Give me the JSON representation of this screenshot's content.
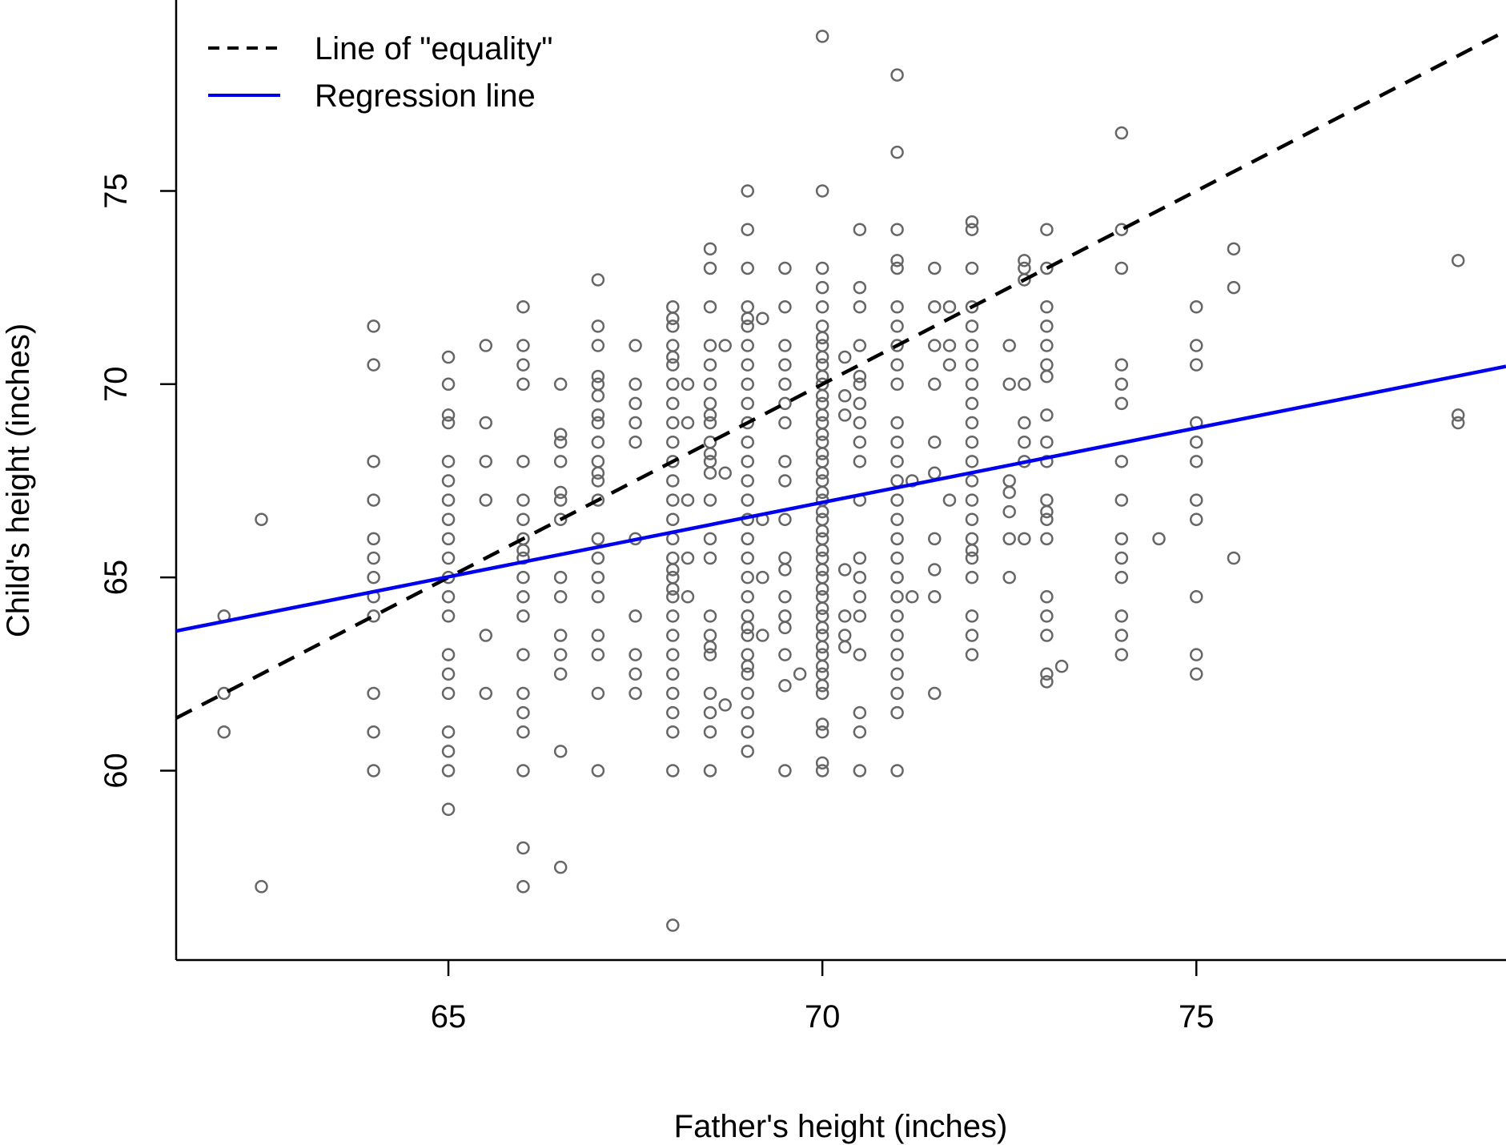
{
  "chart_data": {
    "type": "scatter",
    "xlabel": "Father's height (inches)",
    "ylabel": "Child's height (inches)",
    "xlim": [
      61.36,
      79.14
    ],
    "ylim": [
      55.1,
      79.94
    ],
    "xticks": [
      65,
      70,
      75
    ],
    "yticks": [
      60,
      65,
      70,
      75
    ],
    "grid": false,
    "legend_position": "top-left",
    "colors": {
      "points": "#666666",
      "equality": "#000000",
      "regression": "#0000ee"
    },
    "legend": [
      {
        "label": "Line of \"equality\"",
        "style": "dashed",
        "color": "#000000"
      },
      {
        "label": "Regression line",
        "style": "solid",
        "color": "#0000ee"
      }
    ],
    "lines": {
      "equality": {
        "slope": 1,
        "intercept": 0
      },
      "regression": {
        "slope": 0.385,
        "intercept": 39.99
      }
    },
    "points": [
      [
        62,
        64
      ],
      [
        62,
        62
      ],
      [
        62,
        61
      ],
      [
        62.5,
        66.5
      ],
      [
        62.5,
        57
      ],
      [
        64,
        71.5
      ],
      [
        64,
        70.5
      ],
      [
        64,
        68
      ],
      [
        64,
        67
      ],
      [
        64,
        66
      ],
      [
        64,
        65.5
      ],
      [
        64,
        65
      ],
      [
        64,
        64.5
      ],
      [
        64,
        64
      ],
      [
        64,
        62
      ],
      [
        64,
        61
      ],
      [
        64,
        60
      ],
      [
        65,
        70.7
      ],
      [
        65,
        70
      ],
      [
        65,
        69.2
      ],
      [
        65,
        69
      ],
      [
        65,
        68
      ],
      [
        65,
        67.5
      ],
      [
        65,
        67
      ],
      [
        65,
        66.5
      ],
      [
        65,
        66
      ],
      [
        65,
        65.5
      ],
      [
        65,
        65
      ],
      [
        65,
        64.5
      ],
      [
        65,
        64
      ],
      [
        65,
        63
      ],
      [
        65,
        62.5
      ],
      [
        65,
        62
      ],
      [
        65,
        61
      ],
      [
        65,
        60.5
      ],
      [
        65,
        60
      ],
      [
        65,
        59
      ],
      [
        65.5,
        71
      ],
      [
        65.5,
        69
      ],
      [
        65.5,
        68
      ],
      [
        65.5,
        67
      ],
      [
        65.5,
        63.5
      ],
      [
        65.5,
        62
      ],
      [
        66,
        72
      ],
      [
        66,
        71
      ],
      [
        66,
        70.5
      ],
      [
        66,
        70
      ],
      [
        66,
        68
      ],
      [
        66,
        67
      ],
      [
        66,
        66.5
      ],
      [
        66,
        66
      ],
      [
        66,
        65.7
      ],
      [
        66,
        65.5
      ],
      [
        66,
        65
      ],
      [
        66,
        64.5
      ],
      [
        66,
        64
      ],
      [
        66,
        63
      ],
      [
        66,
        62
      ],
      [
        66,
        61.5
      ],
      [
        66,
        61
      ],
      [
        66,
        60
      ],
      [
        66,
        58
      ],
      [
        66,
        57
      ],
      [
        66.5,
        70
      ],
      [
        66.5,
        68.7
      ],
      [
        66.5,
        68.5
      ],
      [
        66.5,
        68
      ],
      [
        66.5,
        67.2
      ],
      [
        66.5,
        67
      ],
      [
        66.5,
        66.5
      ],
      [
        66.5,
        65
      ],
      [
        66.5,
        64.5
      ],
      [
        66.5,
        63.5
      ],
      [
        66.5,
        63
      ],
      [
        66.5,
        62.5
      ],
      [
        66.5,
        60.5
      ],
      [
        66.5,
        57.5
      ],
      [
        67,
        72.7
      ],
      [
        67,
        71.5
      ],
      [
        67,
        71
      ],
      [
        67,
        70.2
      ],
      [
        67,
        70
      ],
      [
        67,
        69.7
      ],
      [
        67,
        69.2
      ],
      [
        67,
        69
      ],
      [
        67,
        68.5
      ],
      [
        67,
        68
      ],
      [
        67,
        67.7
      ],
      [
        67,
        67.5
      ],
      [
        67,
        67
      ],
      [
        67,
        66
      ],
      [
        67,
        65.5
      ],
      [
        67,
        65
      ],
      [
        67,
        64.5
      ],
      [
        67,
        63.5
      ],
      [
        67,
        63
      ],
      [
        67,
        62
      ],
      [
        67,
        60
      ],
      [
        67.5,
        71
      ],
      [
        67.5,
        70
      ],
      [
        67.5,
        69.5
      ],
      [
        67.5,
        69
      ],
      [
        67.5,
        68.5
      ],
      [
        67.5,
        66
      ],
      [
        67.5,
        64
      ],
      [
        67.5,
        63
      ],
      [
        67.5,
        62.5
      ],
      [
        67.5,
        62
      ],
      [
        68,
        72
      ],
      [
        68,
        71.7
      ],
      [
        68,
        71.5
      ],
      [
        68,
        71
      ],
      [
        68,
        70.7
      ],
      [
        68,
        70.5
      ],
      [
        68,
        70
      ],
      [
        68,
        69.5
      ],
      [
        68,
        69
      ],
      [
        68,
        68.5
      ],
      [
        68,
        68
      ],
      [
        68,
        67.5
      ],
      [
        68,
        67
      ],
      [
        68,
        66.5
      ],
      [
        68,
        66
      ],
      [
        68,
        65.5
      ],
      [
        68,
        65.2
      ],
      [
        68,
        65
      ],
      [
        68,
        64.7
      ],
      [
        68,
        64.5
      ],
      [
        68,
        64
      ],
      [
        68,
        63.5
      ],
      [
        68,
        63
      ],
      [
        68,
        62.5
      ],
      [
        68,
        62
      ],
      [
        68,
        61.5
      ],
      [
        68,
        61
      ],
      [
        68,
        60
      ],
      [
        68,
        56
      ],
      [
        68.2,
        70
      ],
      [
        68.2,
        69
      ],
      [
        68.2,
        67
      ],
      [
        68.2,
        65.5
      ],
      [
        68.2,
        64.5
      ],
      [
        68.5,
        73.5
      ],
      [
        68.5,
        73
      ],
      [
        68.5,
        72
      ],
      [
        68.5,
        71
      ],
      [
        68.5,
        70.5
      ],
      [
        68.5,
        70
      ],
      [
        68.5,
        69.5
      ],
      [
        68.5,
        69.2
      ],
      [
        68.5,
        69
      ],
      [
        68.5,
        68.5
      ],
      [
        68.5,
        68.2
      ],
      [
        68.5,
        68
      ],
      [
        68.5,
        67.7
      ],
      [
        68.5,
        67
      ],
      [
        68.5,
        66
      ],
      [
        68.5,
        65.5
      ],
      [
        68.5,
        64
      ],
      [
        68.5,
        63.5
      ],
      [
        68.5,
        63.2
      ],
      [
        68.5,
        63
      ],
      [
        68.5,
        62
      ],
      [
        68.5,
        61.5
      ],
      [
        68.5,
        61
      ],
      [
        68.5,
        60
      ],
      [
        68.7,
        71
      ],
      [
        68.7,
        67.7
      ],
      [
        68.7,
        61.7
      ],
      [
        69,
        75
      ],
      [
        69,
        74
      ],
      [
        69,
        73
      ],
      [
        69,
        72
      ],
      [
        69,
        71.7
      ],
      [
        69,
        71.5
      ],
      [
        69,
        71
      ],
      [
        69,
        70.5
      ],
      [
        69,
        70
      ],
      [
        69,
        69.5
      ],
      [
        69,
        69
      ],
      [
        69,
        68.5
      ],
      [
        69,
        68
      ],
      [
        69,
        67.5
      ],
      [
        69,
        67
      ],
      [
        69,
        66.5
      ],
      [
        69,
        66
      ],
      [
        69,
        65.5
      ],
      [
        69,
        65
      ],
      [
        69,
        64.5
      ],
      [
        69,
        64
      ],
      [
        69,
        63.7
      ],
      [
        69,
        63.5
      ],
      [
        69,
        63
      ],
      [
        69,
        62.7
      ],
      [
        69,
        62.5
      ],
      [
        69,
        62
      ],
      [
        69,
        61.5
      ],
      [
        69,
        61
      ],
      [
        69,
        60.5
      ],
      [
        69.2,
        71.7
      ],
      [
        69.2,
        66.5
      ],
      [
        69.2,
        65
      ],
      [
        69.2,
        63.5
      ],
      [
        69.5,
        73
      ],
      [
        69.5,
        72
      ],
      [
        69.5,
        71
      ],
      [
        69.5,
        70.5
      ],
      [
        69.5,
        70
      ],
      [
        69.5,
        69.5
      ],
      [
        69.5,
        69
      ],
      [
        69.5,
        68
      ],
      [
        69.5,
        67.5
      ],
      [
        69.5,
        66.5
      ],
      [
        69.5,
        65.5
      ],
      [
        69.5,
        65.2
      ],
      [
        69.5,
        64.5
      ],
      [
        69.5,
        64
      ],
      [
        69.5,
        63.7
      ],
      [
        69.5,
        63
      ],
      [
        69.5,
        62.2
      ],
      [
        69.5,
        60
      ],
      [
        69.7,
        62.5
      ],
      [
        70,
        79
      ],
      [
        70,
        75
      ],
      [
        70,
        73
      ],
      [
        70,
        72.5
      ],
      [
        70,
        72
      ],
      [
        70,
        71.5
      ],
      [
        70,
        71.2
      ],
      [
        70,
        71
      ],
      [
        70,
        70.7
      ],
      [
        70,
        70.5
      ],
      [
        70,
        70.2
      ],
      [
        70,
        70
      ],
      [
        70,
        69.7
      ],
      [
        70,
        69.5
      ],
      [
        70,
        69.2
      ],
      [
        70,
        69
      ],
      [
        70,
        68.7
      ],
      [
        70,
        68.5
      ],
      [
        70,
        68.2
      ],
      [
        70,
        68
      ],
      [
        70,
        67.7
      ],
      [
        70,
        67.5
      ],
      [
        70,
        67.2
      ],
      [
        70,
        67
      ],
      [
        70,
        66.7
      ],
      [
        70,
        66.5
      ],
      [
        70,
        66.2
      ],
      [
        70,
        66
      ],
      [
        70,
        65.7
      ],
      [
        70,
        65.5
      ],
      [
        70,
        65.2
      ],
      [
        70,
        65
      ],
      [
        70,
        64.7
      ],
      [
        70,
        64.5
      ],
      [
        70,
        64.2
      ],
      [
        70,
        64
      ],
      [
        70,
        63.7
      ],
      [
        70,
        63.5
      ],
      [
        70,
        63.2
      ],
      [
        70,
        63
      ],
      [
        70,
        62.7
      ],
      [
        70,
        62.5
      ],
      [
        70,
        62.2
      ],
      [
        70,
        62
      ],
      [
        70,
        61.2
      ],
      [
        70,
        61
      ],
      [
        70,
        60.2
      ],
      [
        70,
        60
      ],
      [
        70.3,
        70.7
      ],
      [
        70.3,
        69.7
      ],
      [
        70.3,
        69.2
      ],
      [
        70.3,
        65.2
      ],
      [
        70.3,
        64
      ],
      [
        70.3,
        63.5
      ],
      [
        70.3,
        63.2
      ],
      [
        70.5,
        74
      ],
      [
        70.5,
        72.5
      ],
      [
        70.5,
        72
      ],
      [
        70.5,
        71
      ],
      [
        70.5,
        70.2
      ],
      [
        70.5,
        70
      ],
      [
        70.5,
        69.5
      ],
      [
        70.5,
        69
      ],
      [
        70.5,
        68.5
      ],
      [
        70.5,
        68
      ],
      [
        70.5,
        67
      ],
      [
        70.5,
        65.5
      ],
      [
        70.5,
        65
      ],
      [
        70.5,
        64.5
      ],
      [
        70.5,
        64
      ],
      [
        70.5,
        63
      ],
      [
        70.5,
        61.5
      ],
      [
        70.5,
        61
      ],
      [
        70.5,
        60
      ],
      [
        71,
        78
      ],
      [
        71,
        76
      ],
      [
        71,
        74
      ],
      [
        71,
        73.2
      ],
      [
        71,
        73
      ],
      [
        71,
        72
      ],
      [
        71,
        71.5
      ],
      [
        71,
        71
      ],
      [
        71,
        70.5
      ],
      [
        71,
        70
      ],
      [
        71,
        69
      ],
      [
        71,
        68.5
      ],
      [
        71,
        68
      ],
      [
        71,
        67.5
      ],
      [
        71,
        67
      ],
      [
        71,
        66.5
      ],
      [
        71,
        66
      ],
      [
        71,
        65.5
      ],
      [
        71,
        65
      ],
      [
        71,
        64.5
      ],
      [
        71,
        64
      ],
      [
        71,
        63.5
      ],
      [
        71,
        63
      ],
      [
        71,
        62.5
      ],
      [
        71,
        62
      ],
      [
        71,
        61.5
      ],
      [
        71,
        60
      ],
      [
        71.2,
        67.5
      ],
      [
        71.2,
        64.5
      ],
      [
        71.5,
        73
      ],
      [
        71.5,
        72
      ],
      [
        71.5,
        71
      ],
      [
        71.5,
        70
      ],
      [
        71.5,
        68.5
      ],
      [
        71.5,
        67.7
      ],
      [
        71.5,
        66
      ],
      [
        71.5,
        65.2
      ],
      [
        71.5,
        64.5
      ],
      [
        71.5,
        62
      ],
      [
        71.7,
        72
      ],
      [
        71.7,
        71
      ],
      [
        71.7,
        70.5
      ],
      [
        71.7,
        67
      ],
      [
        72,
        74.2
      ],
      [
        72,
        74
      ],
      [
        72,
        73
      ],
      [
        72,
        72
      ],
      [
        72,
        71.5
      ],
      [
        72,
        71
      ],
      [
        72,
        70.5
      ],
      [
        72,
        70
      ],
      [
        72,
        69.5
      ],
      [
        72,
        69
      ],
      [
        72,
        68.5
      ],
      [
        72,
        68
      ],
      [
        72,
        67.5
      ],
      [
        72,
        67
      ],
      [
        72,
        66.5
      ],
      [
        72,
        66
      ],
      [
        72,
        65.7
      ],
      [
        72,
        65.5
      ],
      [
        72,
        65
      ],
      [
        72,
        64
      ],
      [
        72,
        63.5
      ],
      [
        72,
        63
      ],
      [
        72.5,
        71
      ],
      [
        72.5,
        70
      ],
      [
        72.5,
        67.5
      ],
      [
        72.5,
        67.2
      ],
      [
        72.5,
        66.7
      ],
      [
        72.5,
        66
      ],
      [
        72.5,
        65
      ],
      [
        72.7,
        73.2
      ],
      [
        72.7,
        73
      ],
      [
        72.7,
        72.7
      ],
      [
        72.7,
        70
      ],
      [
        72.7,
        69
      ],
      [
        72.7,
        68.5
      ],
      [
        72.7,
        68
      ],
      [
        72.7,
        66
      ],
      [
        73,
        74
      ],
      [
        73,
        73
      ],
      [
        73,
        72
      ],
      [
        73,
        71.5
      ],
      [
        73,
        71
      ],
      [
        73,
        70.5
      ],
      [
        73,
        70.2
      ],
      [
        73,
        69.2
      ],
      [
        73,
        68.5
      ],
      [
        73,
        68
      ],
      [
        73,
        67
      ],
      [
        73,
        66.7
      ],
      [
        73,
        66.5
      ],
      [
        73,
        66
      ],
      [
        73,
        64.5
      ],
      [
        73,
        64
      ],
      [
        73,
        63.5
      ],
      [
        73,
        62.5
      ],
      [
        73,
        62.3
      ],
      [
        73.2,
        62.7
      ],
      [
        74,
        76.5
      ],
      [
        74,
        74
      ],
      [
        74,
        73
      ],
      [
        74,
        70.5
      ],
      [
        74,
        70
      ],
      [
        74,
        69.5
      ],
      [
        74,
        68
      ],
      [
        74,
        67
      ],
      [
        74,
        66
      ],
      [
        74,
        65.5
      ],
      [
        74,
        65
      ],
      [
        74,
        64
      ],
      [
        74,
        63.5
      ],
      [
        74,
        63
      ],
      [
        74.5,
        66
      ],
      [
        75,
        72
      ],
      [
        75,
        71
      ],
      [
        75,
        70.5
      ],
      [
        75,
        69
      ],
      [
        75,
        68.5
      ],
      [
        75,
        68
      ],
      [
        75,
        67
      ],
      [
        75,
        66.5
      ],
      [
        75,
        64.5
      ],
      [
        75,
        63
      ],
      [
        75,
        62.5
      ],
      [
        75.5,
        73.5
      ],
      [
        75.5,
        72.5
      ],
      [
        75.5,
        65.5
      ],
      [
        78.5,
        73.2
      ],
      [
        78.5,
        69.2
      ],
      [
        78.5,
        69
      ]
    ]
  }
}
